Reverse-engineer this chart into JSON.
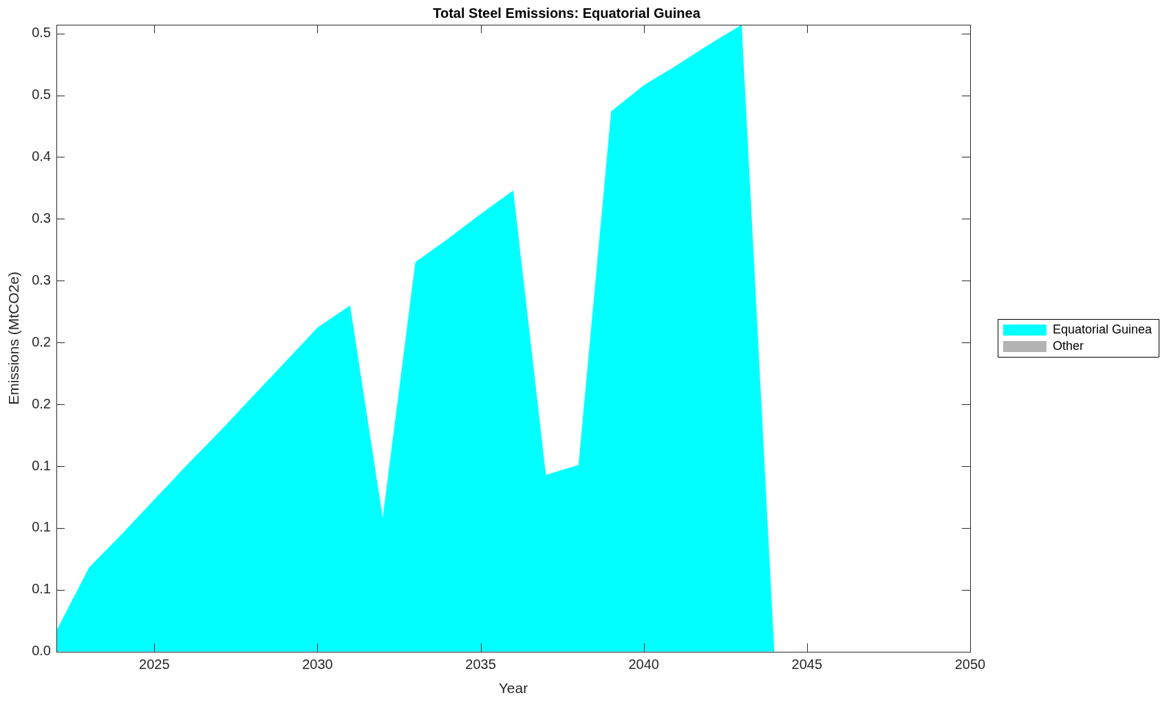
{
  "chart_data": {
    "type": "area",
    "title": "Total Steel Emissions: Equatorial Guinea",
    "xlabel": "Year",
    "ylabel": "Emissions (MtCO2e)",
    "x": [
      2022,
      2023,
      2024,
      2025,
      2026,
      2027,
      2028,
      2029,
      2030,
      2031,
      2032,
      2033,
      2034,
      2035,
      2036,
      2037,
      2038,
      2039,
      2040,
      2041,
      2042,
      2043,
      2044,
      2045,
      2046,
      2047,
      2048,
      2049,
      2050
    ],
    "series": [
      {
        "name": "Equatorial Guinea",
        "color": "#00ffff",
        "values": [
          0.017,
          0.068,
          0.095,
          0.123,
          0.151,
          0.178,
          0.206,
          0.234,
          0.262,
          0.28,
          0.108,
          0.315,
          0.334,
          0.354,
          0.373,
          0.143,
          0.151,
          0.437,
          0.458,
          0.474,
          0.491,
          0.507,
          0,
          0,
          0,
          0,
          0,
          0,
          0
        ]
      },
      {
        "name": "Other",
        "color": "#b3b3b3",
        "values": [
          null,
          null,
          null,
          null,
          null,
          null,
          null,
          null,
          null,
          null,
          null,
          null,
          null,
          null,
          null,
          null,
          null,
          null,
          null,
          null,
          null,
          null,
          null,
          null,
          null,
          null,
          null,
          null,
          null
        ]
      }
    ],
    "xlim": [
      2022,
      2050
    ],
    "xticks": [
      2025,
      2030,
      2035,
      2040,
      2045,
      2050
    ],
    "ylim": [
      0,
      0.507
    ],
    "yticks": [
      {
        "value": 0,
        "label": "0.0"
      },
      {
        "value": 0.05,
        "label": "0.1"
      },
      0.1,
      {
        "value": 0.15,
        "label": "0.1"
      },
      0.2,
      {
        "value": 0.25,
        "label": "0.2"
      },
      0.3,
      {
        "value": 0.35,
        "label": "0.3"
      },
      0.4,
      {
        "value": 0.45,
        "label": "0.5"
      },
      0.5
    ],
    "legend": "right"
  }
}
